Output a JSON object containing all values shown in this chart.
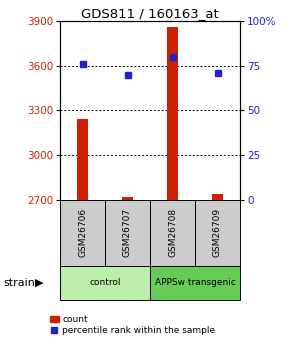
{
  "title": "GDS811 / 160163_at",
  "samples": [
    "GSM26706",
    "GSM26707",
    "GSM26708",
    "GSM26709"
  ],
  "counts": [
    3240,
    2720,
    3860,
    2740
  ],
  "percentiles": [
    76,
    70,
    80,
    71
  ],
  "ylim_left": [
    2700,
    3900
  ],
  "ylim_right": [
    0,
    100
  ],
  "yticks_left": [
    2700,
    3000,
    3300,
    3600,
    3900
  ],
  "yticks_right": [
    0,
    25,
    50,
    75,
    100
  ],
  "yticklabels_right": [
    "0",
    "25",
    "50",
    "75",
    "100%"
  ],
  "bar_color": "#cc2200",
  "dot_color": "#2222cc",
  "bar_bottom": 2700,
  "groups": [
    {
      "label": "control",
      "indices": [
        0,
        1
      ],
      "color": "#bbeeaa"
    },
    {
      "label": "APPSw transgenic",
      "indices": [
        2,
        3
      ],
      "color": "#66cc55"
    }
  ],
  "ylabel_left_color": "#cc2200",
  "ylabel_right_color": "#2222cc",
  "sample_box_color": "#cccccc",
  "strain_label": "strain",
  "legend_count_label": "count",
  "legend_pct_label": "percentile rank within the sample",
  "bg_color": "#ffffff"
}
